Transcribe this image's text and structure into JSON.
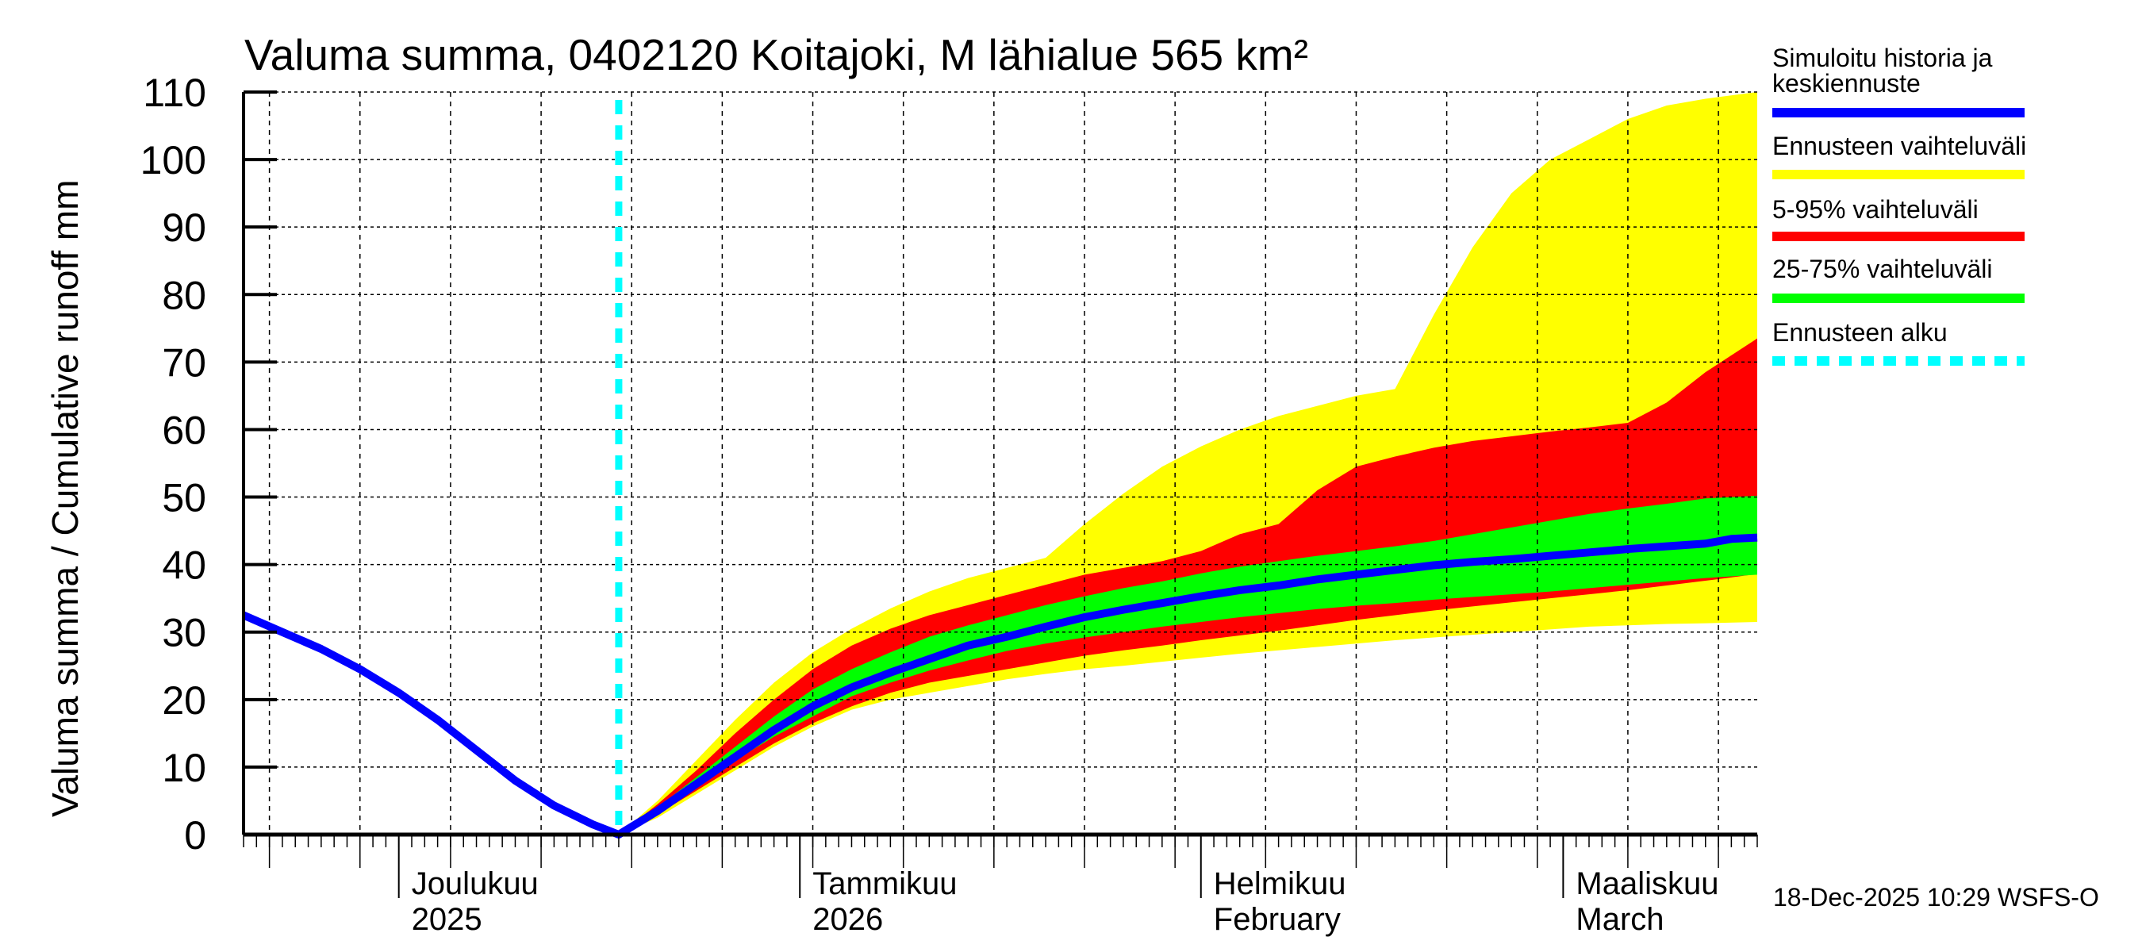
{
  "chart_data": {
    "type": "area",
    "title": "Valuma summa, 0402120 Koitajoki, M lähialue 565 km²",
    "ylabel": "Valuma summa / Cumulative runoff     mm",
    "xlabel": "",
    "ylim": [
      0,
      110
    ],
    "yticks": [
      0,
      10,
      20,
      30,
      40,
      50,
      60,
      70,
      80,
      90,
      100,
      110
    ],
    "ytick_labels": [
      "0",
      "10",
      "20",
      "30",
      "40",
      "50",
      "60",
      "70",
      "80",
      "90",
      "100",
      "110"
    ],
    "x_unit": "days since 2025-11-19",
    "xlim": [
      0,
      117
    ],
    "grid": true,
    "forecast_start_day": 29,
    "months": [
      {
        "day": 12,
        "label1": "Joulukuu",
        "label2": "2025"
      },
      {
        "day": 43,
        "label1": "Tammikuu",
        "label2": "2026"
      },
      {
        "day": 74,
        "label1": "Helmikuu",
        "label2": "February"
      },
      {
        "day": 102,
        "label1": "Maaliskuu",
        "label2": "March"
      }
    ],
    "legend_position": "right",
    "legend": [
      {
        "label": "Simuloitu historia ja keskiennuste",
        "color": "#0000ff",
        "style": "line"
      },
      {
        "label": "Ennusteen vaihteluväli",
        "color": "#ffff00",
        "style": "line"
      },
      {
        "label": "5-95% vaihteluväli",
        "color": "#ff0000",
        "style": "line"
      },
      {
        "label": "25-75% vaihteluväli",
        "color": "#00ff00",
        "style": "line"
      },
      {
        "label": "Ennusteen alku",
        "color": "#00ffff",
        "style": "dotted"
      }
    ],
    "series": [
      {
        "name": "Simuloitu historia ja keskiennuste",
        "color": "#0000ff",
        "x": [
          0,
          3,
          6,
          9,
          12,
          15,
          18,
          21,
          24,
          27,
          29,
          32,
          35,
          38,
          41,
          44,
          47,
          50,
          53,
          56,
          59,
          62,
          65,
          68,
          71,
          74,
          77,
          80,
          83,
          86,
          89,
          92,
          95,
          98,
          101,
          104,
          107,
          110,
          113,
          115,
          117
        ],
        "y": [
          32.5,
          30,
          27.5,
          24.5,
          21,
          17,
          12.5,
          8,
          4.3,
          1.5,
          0,
          3.5,
          7.5,
          11.5,
          15.5,
          19,
          21.8,
          24,
          26,
          28,
          29.3,
          30.8,
          32.2,
          33.3,
          34.3,
          35.3,
          36.2,
          36.9,
          37.8,
          38.5,
          39.2,
          39.9,
          40.4,
          40.8,
          41.3,
          41.8,
          42.3,
          42.7,
          43.1,
          43.8,
          44
        ]
      },
      {
        "name": "Ennusteen vaihteluväli",
        "color": "#ffff00",
        "x": [
          29,
          32,
          35,
          38,
          41,
          44,
          47,
          50,
          53,
          56,
          59,
          62,
          65,
          68,
          71,
          74,
          77,
          80,
          83,
          86,
          89,
          92,
          95,
          98,
          101,
          104,
          107,
          110,
          113,
          117
        ],
        "upper": [
          0,
          5,
          11,
          17,
          22.5,
          27,
          30.5,
          33.5,
          36,
          38,
          39.5,
          41,
          46,
          50.5,
          54.5,
          57.5,
          60,
          62,
          63.5,
          65,
          66,
          77,
          87,
          95,
          100,
          103,
          106,
          108,
          109,
          110
        ],
        "lower": [
          0,
          2.5,
          6,
          9.5,
          13,
          16,
          18.5,
          20,
          21,
          22,
          23,
          23.8,
          24.5,
          25,
          25.6,
          26.2,
          26.8,
          27.3,
          27.8,
          28.3,
          28.8,
          29.2,
          29.6,
          30,
          30.4,
          30.8,
          31,
          31.2,
          31.3,
          31.5
        ]
      },
      {
        "name": "5-95% vaihteluväli",
        "color": "#ff0000",
        "x": [
          29,
          32,
          35,
          38,
          41,
          44,
          47,
          50,
          53,
          56,
          59,
          62,
          65,
          68,
          71,
          74,
          77,
          80,
          83,
          86,
          89,
          92,
          95,
          98,
          101,
          104,
          107,
          110,
          113,
          117
        ],
        "upper": [
          0,
          4.5,
          9.5,
          15,
          20,
          24.5,
          28,
          30.5,
          32.5,
          34,
          35.5,
          37,
          38.5,
          39.5,
          40.5,
          42,
          44.5,
          46,
          51,
          54.5,
          56,
          57.3,
          58.3,
          59,
          59.7,
          60.3,
          61,
          64,
          68.5,
          73.5
        ]
      },
      {
        "name": "5-95% lower",
        "color": "#ff0000",
        "x": [
          29,
          32,
          35,
          38,
          41,
          44,
          47,
          50,
          53,
          56,
          59,
          62,
          65,
          68,
          71,
          74,
          77,
          80,
          83,
          86,
          89,
          92,
          95,
          98,
          101,
          104,
          107,
          110,
          113,
          117
        ],
        "y": [
          0,
          3,
          6.5,
          10,
          13.5,
          16.5,
          19,
          21,
          22.5,
          23.5,
          24.5,
          25.5,
          26.5,
          27.3,
          28,
          28.8,
          29.5,
          30.2,
          31,
          31.8,
          32.5,
          33.2,
          33.8,
          34.4,
          35,
          35.6,
          36.2,
          36.9,
          37.6,
          38.6
        ]
      },
      {
        "name": "25-75% vaihteluväli",
        "color": "#00ff00",
        "x": [
          29,
          32,
          35,
          38,
          41,
          44,
          47,
          50,
          53,
          56,
          59,
          62,
          65,
          68,
          71,
          74,
          77,
          80,
          83,
          86,
          89,
          92,
          95,
          98,
          101,
          104,
          107,
          110,
          113,
          117
        ],
        "upper": [
          0,
          4,
          8.5,
          13,
          17.5,
          21.5,
          24.5,
          27,
          29.3,
          31,
          32.5,
          34,
          35.3,
          36.5,
          37.5,
          38.7,
          39.7,
          40.5,
          41.3,
          42,
          42.7,
          43.5,
          44.5,
          45.5,
          46.5,
          47.5,
          48.3,
          49,
          49.8,
          50.2
        ],
        "lower": [
          0,
          3.3,
          7,
          11,
          14.5,
          17.5,
          20.5,
          22.5,
          24.3,
          25.8,
          27.2,
          28.3,
          29.2,
          30,
          30.8,
          31.5,
          32.2,
          32.8,
          33.4,
          33.9,
          34.3,
          34.8,
          35.2,
          35.6,
          36,
          36.5,
          37,
          37.5,
          38,
          38.5
        ]
      }
    ]
  },
  "footer": {
    "timestamp": "18-Dec-2025 10:29 WSFS-O"
  }
}
